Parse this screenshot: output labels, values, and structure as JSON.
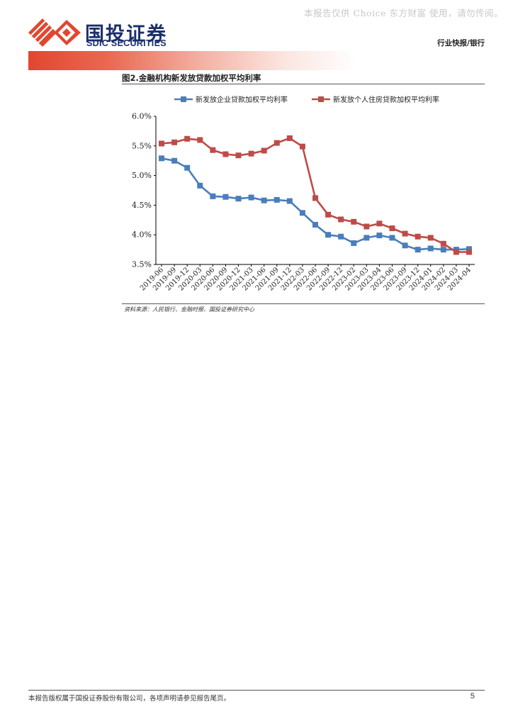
{
  "watermark": "本报告仅供 Choice 东方财富 使用，请勿传阅。",
  "logo": {
    "cn": "国投证券",
    "en": "SDIC SECURITIES"
  },
  "header": {
    "category": "行业快报/银行"
  },
  "figure": {
    "title": "图2.金融机构新发放贷款加权平均利率",
    "source": "资料来源：人民银行、金融时报、国投证券研究中心"
  },
  "footer": {
    "disclaimer": "本报告版权属于国投证券股份有限公司，各项声明请参见报告尾页。",
    "page": "5"
  },
  "colors": {
    "brand_red": "#e2462f",
    "brand_navy": "#1b2f6b",
    "series_blue": "#4a7ebb",
    "series_red": "#be4b48"
  },
  "chart_data": {
    "type": "line",
    "title": "图2.金融机构新发放贷款加权平均利率",
    "x": [
      "2019-06",
      "2019-09",
      "2019-12",
      "2020-03",
      "2020-06",
      "2020-09",
      "2020-12",
      "2021-03",
      "2021-06",
      "2021-09",
      "2021-12",
      "2022-03",
      "2022-06",
      "2022-09",
      "2022-12",
      "2023-02",
      "2023-03",
      "2023-04",
      "2023-06",
      "2023-09",
      "2023-12",
      "2024-01",
      "2024-02",
      "2024-03",
      "2024-04"
    ],
    "yticks": [
      "3.5%",
      "4.0%",
      "4.5%",
      "5.0%",
      "5.5%",
      "6.0%"
    ],
    "ylim": [
      3.5,
      6.0
    ],
    "legend_position": "top",
    "grid": false,
    "series": [
      {
        "name": "新发放企业贷款加权平均利率",
        "color": "#4a7ebb",
        "values": [
          5.29,
          5.25,
          5.13,
          4.83,
          4.65,
          4.64,
          4.61,
          4.63,
          4.58,
          4.59,
          4.57,
          4.37,
          4.17,
          4.0,
          3.97,
          3.86,
          3.95,
          3.99,
          3.95,
          3.82,
          3.75,
          3.77,
          3.75,
          3.75,
          3.76
        ]
      },
      {
        "name": "新发放个人住房贷款加权平均利率",
        "color": "#be4b48",
        "values": [
          5.54,
          5.56,
          5.62,
          5.6,
          5.43,
          5.36,
          5.34,
          5.37,
          5.42,
          5.55,
          5.63,
          5.49,
          4.62,
          4.34,
          4.26,
          4.22,
          4.14,
          4.19,
          4.11,
          4.02,
          3.97,
          3.95,
          3.85,
          3.71,
          3.71
        ]
      }
    ]
  }
}
